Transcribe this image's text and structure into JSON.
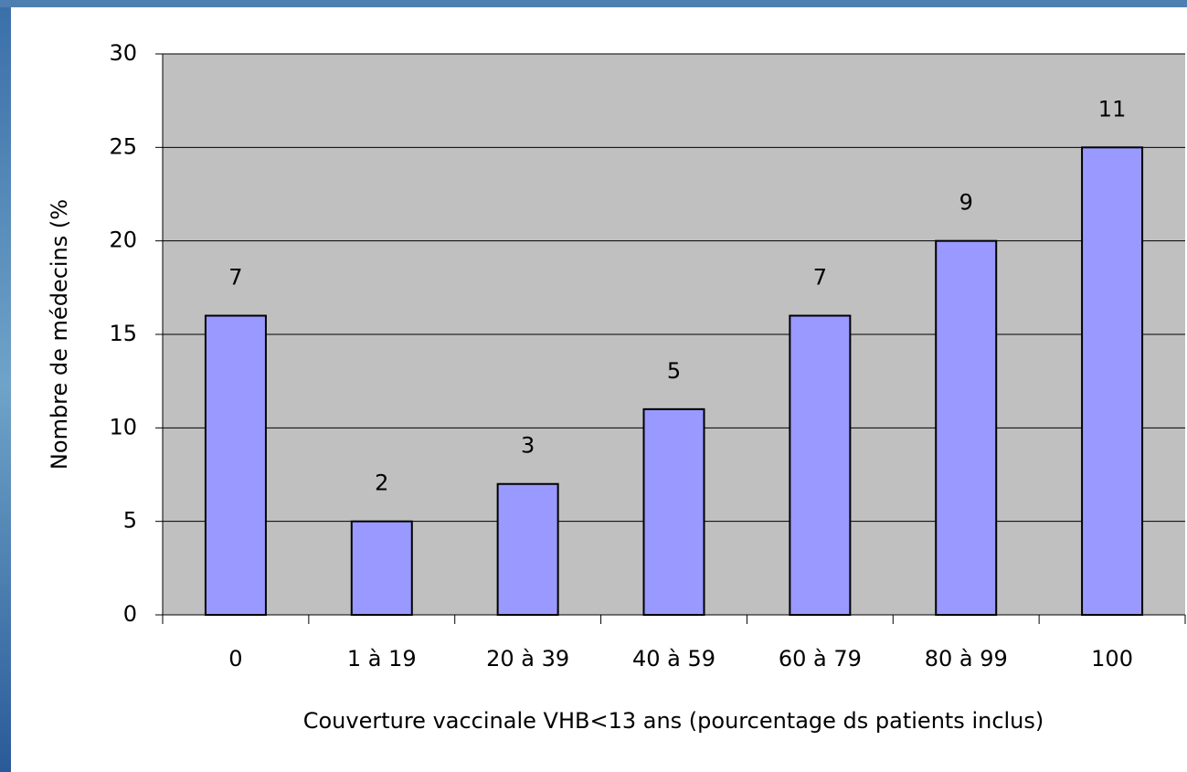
{
  "chart_data": {
    "type": "bar",
    "y_label": "Nombre de médecins (%",
    "x_label": "Couverture vaccinale VHB<13 ans (pourcentage ds patients inclus)",
    "categories": [
      "0",
      "1 à 19",
      "20 à 39",
      "40 à 59",
      "60 à 79",
      "80 à 99",
      "100"
    ],
    "values": [
      16,
      5,
      7,
      11,
      16,
      20,
      25
    ],
    "bar_labels": [
      7,
      2,
      3,
      5,
      7,
      9,
      11
    ],
    "color": "#9999ff",
    "ylim": [
      0,
      30
    ],
    "yticks": [
      0,
      5,
      10,
      15,
      20,
      25,
      30
    ],
    "grid": true
  }
}
